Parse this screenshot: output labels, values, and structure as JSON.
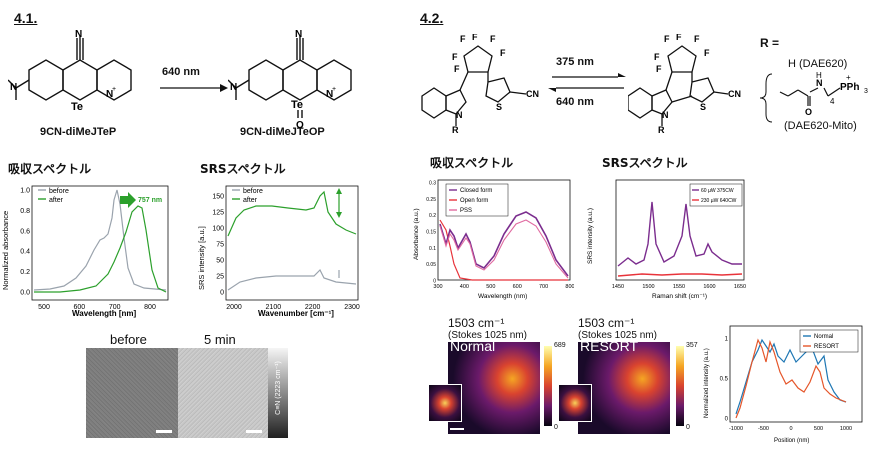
{
  "section_41": {
    "number": "4.1.",
    "reactant": "9CN-diMeJTeP",
    "product": "9CN-diMeJTeOP",
    "arrow_label": "640 nm",
    "absorption_heading": "吸収スペクトル",
    "srs_heading": "SRSスペクトル",
    "absorption_plot": {
      "ylabel": "Normalized absorbance",
      "xlabel": "Wavelength [nm]",
      "yticks": [
        "0.0",
        "0.2",
        "0.4",
        "0.6",
        "0.8",
        "1.0"
      ],
      "xticks": [
        "500",
        "600",
        "700",
        "800"
      ],
      "legend": [
        "before",
        "after"
      ],
      "annotation": "757 nm"
    },
    "srs_plot": {
      "ylabel": "SRS intensity [a.u.]",
      "xlabel": "Wavenumber [cm⁻¹]",
      "yticks": [
        "0",
        "25",
        "50",
        "75",
        "100",
        "125",
        "150"
      ],
      "xticks": [
        "2000",
        "2100",
        "2200",
        "2300"
      ],
      "legend": [
        "before",
        "after"
      ]
    },
    "image_labels": {
      "before": "before",
      "after": "5 min"
    },
    "colorbar_label": "C≡N (2223 cm⁻¹)"
  },
  "section_42": {
    "number": "4.2.",
    "arrow_top": "375 nm",
    "arrow_bottom": "640 nm",
    "r_label": "R  =",
    "r_option1": "H (DAE620)",
    "r_option2": "(DAE620-Mito)",
    "absorption_heading": "吸収スペクトル",
    "srs_heading": "SRSスペクトル",
    "absorption_plot": {
      "ylabel": "Absorbance (a.u.)",
      "xlabel": "Wavelength (nm)",
      "yticks": [
        "0",
        "0.05",
        "0.1",
        "0.15",
        "0.2",
        "0.25",
        "0.3"
      ],
      "xticks": [
        "300",
        "400",
        "500",
        "600",
        "700",
        "800"
      ],
      "legend": [
        "Closed form",
        "Open form",
        "PSS"
      ]
    },
    "srs_plot": {
      "ylabel": "SRS intensity (a.u.)",
      "xlabel": "Raman shift (cm⁻¹)",
      "xticks": [
        "1450",
        "1500",
        "1550",
        "1600",
        "1650"
      ],
      "legend": [
        "60 µW 375CW",
        "230 µW 640CW"
      ]
    },
    "image1": {
      "wavenumber": "1503 cm⁻¹",
      "stokes": "(Stokes 1025 nm)",
      "label": "Normal",
      "cbar_max": "689",
      "cbar_min": "0"
    },
    "image2": {
      "wavenumber": "1503 cm⁻¹",
      "stokes": "(Stokes 1025 nm)",
      "label": "RESORT",
      "cbar_max": "357",
      "cbar_min": "0"
    },
    "profile_plot": {
      "ylabel": "Normalized intensity (a.u.)",
      "xlabel": "Position (nm)",
      "yticks": [
        "0",
        "0.5",
        "1"
      ],
      "xticks": [
        "-1000",
        "-500",
        "0",
        "500",
        "1000"
      ],
      "legend": [
        "Normal",
        "RESORT"
      ]
    }
  },
  "colors": {
    "gray_curve": "#9aa3ad",
    "green_curve": "#2ca02c",
    "purple_curve": "#7b2d8e",
    "red_curve": "#e8333a",
    "pink_curve": "#e06aa0",
    "blue_curve": "#1f77b4",
    "orange_curve": "#e5562a"
  }
}
